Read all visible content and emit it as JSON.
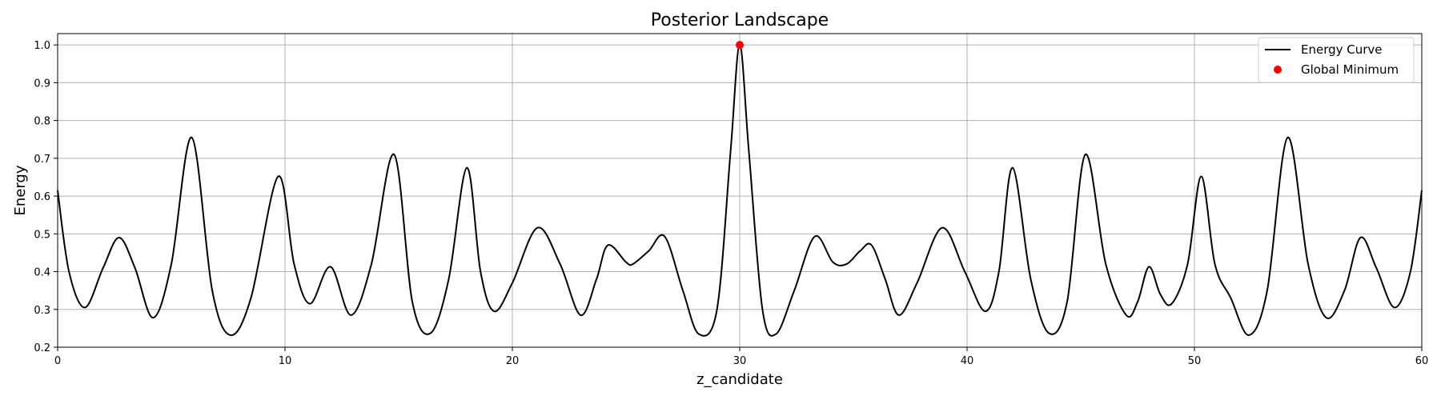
{
  "chart_data": {
    "type": "line",
    "title": "Posterior Landscape",
    "xlabel": "z_candidate",
    "ylabel": "Energy",
    "xlim": [
      0,
      60
    ],
    "ylim": [
      0.2,
      1.03
    ],
    "xticks": [
      0,
      10,
      20,
      30,
      40,
      50,
      60
    ],
    "xtick_labels": [
      "0",
      "10",
      "20",
      "30",
      "40",
      "50",
      "60"
    ],
    "yticks": [
      0.2,
      0.3,
      0.4,
      0.5,
      0.6,
      0.7,
      0.8,
      0.9,
      1.0
    ],
    "ytick_labels": [
      "0.2",
      "0.3",
      "0.4",
      "0.5",
      "0.6",
      "0.7",
      "0.8",
      "0.9",
      "1.0"
    ],
    "grid": true,
    "legend_position": "top-right",
    "series": [
      {
        "name": "Energy Curve",
        "type": "line",
        "color": "#000000",
        "x": [
          0,
          0.5,
          1.2,
          2.0,
          2.7,
          3.4,
          4.2,
          5.0,
          5.9,
          6.8,
          7.6,
          8.5,
          9.7,
          10.4,
          11.1,
          12.0,
          12.9,
          13.8,
          14.8,
          15.6,
          16.4,
          17.2,
          18.0,
          18.6,
          19.2,
          20.0,
          21.1,
          22.1,
          23.0,
          23.7,
          24.2,
          25.0,
          25.3,
          26.0,
          26.7,
          27.5,
          28.2,
          29.0,
          29.6,
          30.0,
          30.4,
          31.0,
          31.6,
          32.4,
          33.3,
          34.1,
          34.7,
          35.3,
          35.8,
          36.4,
          37.0,
          37.8,
          38.9,
          39.9,
          40.8,
          41.4,
          42.0,
          42.8,
          43.6,
          44.4,
          45.2,
          46.1,
          47.0,
          47.5,
          48.0,
          48.5,
          49.0,
          49.7,
          50.3,
          50.9,
          51.6,
          52.4,
          53.2,
          54.1,
          55.0,
          55.8,
          56.6,
          57.3,
          58.0,
          58.8,
          59.5,
          60.0
        ],
        "y": [
          0.615,
          0.4,
          0.305,
          0.41,
          0.49,
          0.41,
          0.278,
          0.42,
          0.755,
          0.35,
          0.232,
          0.33,
          0.652,
          0.42,
          0.315,
          0.413,
          0.285,
          0.42,
          0.71,
          0.32,
          0.237,
          0.38,
          0.675,
          0.4,
          0.295,
          0.37,
          0.516,
          0.42,
          0.285,
          0.38,
          0.47,
          0.425,
          0.42,
          0.455,
          0.493,
          0.35,
          0.235,
          0.3,
          0.72,
          1.0,
          0.72,
          0.3,
          0.235,
          0.35,
          0.493,
          0.425,
          0.42,
          0.455,
          0.47,
          0.38,
          0.285,
          0.37,
          0.516,
          0.4,
          0.295,
          0.4,
          0.675,
          0.38,
          0.237,
          0.32,
          0.71,
          0.42,
          0.285,
          0.32,
          0.413,
          0.34,
          0.315,
          0.42,
          0.652,
          0.42,
          0.33,
          0.232,
          0.35,
          0.755,
          0.42,
          0.278,
          0.35,
          0.49,
          0.41,
          0.305,
          0.4,
          0.615
        ]
      },
      {
        "name": "Global Minimum",
        "type": "scatter",
        "color": "#ff0000",
        "x": [
          30
        ],
        "y": [
          1.0
        ]
      }
    ]
  }
}
